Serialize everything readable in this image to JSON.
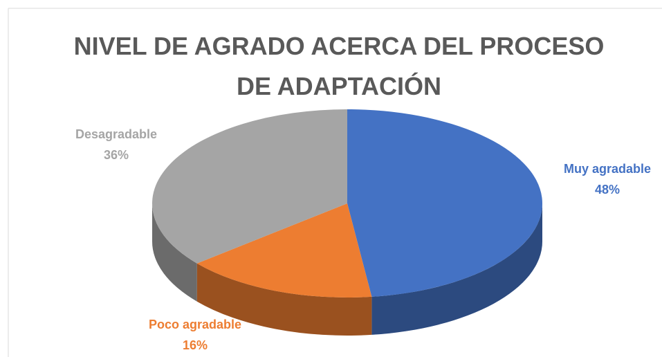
{
  "chart_data": {
    "type": "pie3d",
    "title": "NIVEL DE AGRADO ACERCA DEL PROCESO DE ADAPTACIÓN",
    "categories": [
      "Muy agradable",
      "Poco agradable",
      "Desagradable"
    ],
    "values": [
      48,
      16,
      36
    ],
    "value_labels": [
      "48%",
      "16%",
      "36%"
    ],
    "colors": [
      "#4472c4",
      "#ed7d31",
      "#a5a5a5"
    ]
  }
}
